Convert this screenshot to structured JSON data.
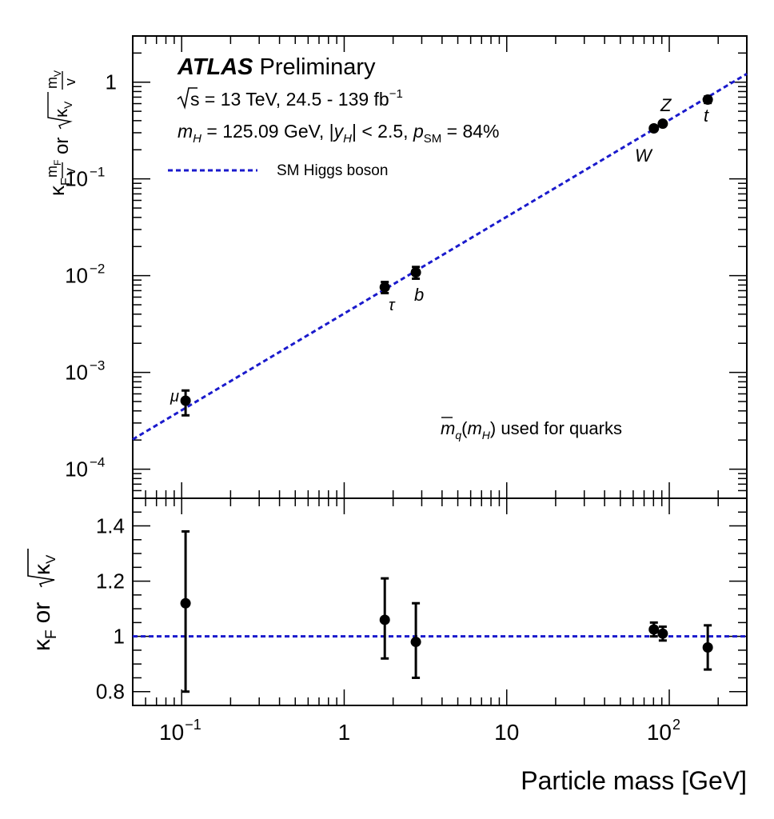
{
  "chart_data": [
    {
      "type": "scatter",
      "panel": "top",
      "ylabel_parts": {
        "kappa": "κ",
        "F": "F",
        "mF": "m",
        "mF_sub": "F",
        "v": "v",
        "or": "or",
        "kV": "κ",
        "V": "V",
        "mV": "m",
        "mV_sub": "V"
      },
      "y_scale": "log",
      "ylim": [
        5e-05,
        3
      ],
      "ytick_labels": {
        "1": "1",
        "0.1": "10",
        "0.01": "10",
        "0.001": "10",
        "0.0001": "10"
      },
      "ytick_exponents": {
        "0.1": "−1",
        "0.01": "−2",
        "0.001": "−3",
        "0.0001": "−4"
      },
      "points": [
        {
          "particle": "μ",
          "x": 0.1057,
          "y": 0.00051,
          "err_lo": 0.00015,
          "err_hi": 0.00014
        },
        {
          "particle": "τ",
          "x": 1.777,
          "y": 0.0076,
          "err_lo": 0.001,
          "err_hi": 0.001
        },
        {
          "particle": "b",
          "x": 2.76,
          "y": 0.0108,
          "err_lo": 0.0015,
          "err_hi": 0.0015
        },
        {
          "particle": "W",
          "x": 80.4,
          "y": 0.333,
          "err_lo": 0.01,
          "err_hi": 0.01
        },
        {
          "particle": "Z",
          "x": 91.19,
          "y": 0.372,
          "err_lo": 0.012,
          "err_hi": 0.012
        },
        {
          "particle": "t",
          "x": 172.5,
          "y": 0.66,
          "err_lo": 0.05,
          "err_hi": 0.05
        }
      ],
      "sm_line": {
        "label": "SM Higgs boson",
        "color": "#1a1acc",
        "x_start": 0.05,
        "x_end": 300
      },
      "annotations": {
        "atlas": "ATLAS",
        "preliminary": "Preliminary",
        "energy_line": "s = 13 TeV, 24.5 - 139 fb",
        "energy_sup": "−1",
        "mass_line": {
          "m": "m",
          "mH_sub": "H",
          "eq": " = 125.09 GeV, |",
          "y": "y",
          "yH_sub": "H",
          "mid": "| < 2.5, ",
          "p": "p",
          "psm_sub": "SM",
          "end": " = 84%"
        },
        "quark_note": {
          "m": "m",
          "q": "q",
          "open": "(",
          "mH": "m",
          "H": "H",
          "close": ")",
          "rest": " used for quarks"
        }
      }
    },
    {
      "type": "scatter",
      "panel": "bottom",
      "ylabel_parts": {
        "kappa": "κ",
        "F": "F",
        "or": "or",
        "kV": "κ",
        "V": "V"
      },
      "ylim": [
        0.75,
        1.5
      ],
      "ytick_labels": [
        "0.8",
        "1",
        "1.2",
        "1.4"
      ],
      "yticks": [
        0.8,
        1.0,
        1.2,
        1.4
      ],
      "reference_line": {
        "y": 1.0,
        "color": "#1a1acc"
      },
      "points": [
        {
          "particle": "μ",
          "x": 0.1057,
          "y": 1.12,
          "err_lo": 0.32,
          "err_hi": 0.26
        },
        {
          "particle": "τ",
          "x": 1.777,
          "y": 1.06,
          "err_lo": 0.14,
          "err_hi": 0.15
        },
        {
          "particle": "b",
          "x": 2.76,
          "y": 0.98,
          "err_lo": 0.13,
          "err_hi": 0.14
        },
        {
          "particle": "W",
          "x": 80.4,
          "y": 1.025,
          "err_lo": 0.025,
          "err_hi": 0.025
        },
        {
          "particle": "Z",
          "x": 91.19,
          "y": 1.01,
          "err_lo": 0.025,
          "err_hi": 0.025
        },
        {
          "particle": "t",
          "x": 172.5,
          "y": 0.96,
          "err_lo": 0.08,
          "err_hi": 0.08
        }
      ]
    }
  ],
  "x_axis": {
    "scale": "log",
    "xlim": [
      0.05,
      300
    ],
    "xlabel": "Particle mass [GeV]",
    "tick_labels": [
      {
        "value": 0.1,
        "base": "10",
        "exp": "−1"
      },
      {
        "value": 1,
        "base": "1",
        "exp": ""
      },
      {
        "value": 10,
        "base": "10",
        "exp": ""
      },
      {
        "value": 100,
        "base": "10",
        "exp": "2"
      }
    ]
  },
  "colors": {
    "sm_line": "#1a1acc",
    "points": "#000000",
    "frame": "#000000"
  }
}
